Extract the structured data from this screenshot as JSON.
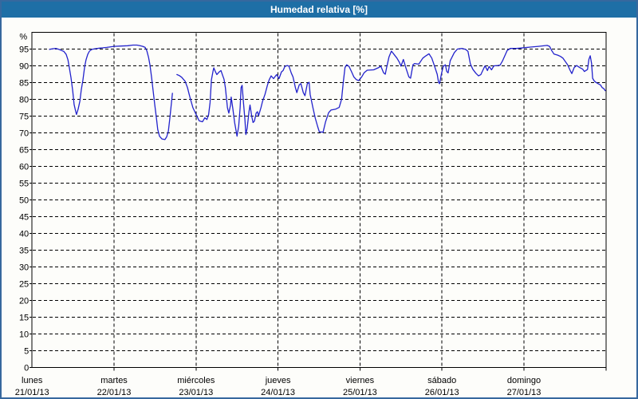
{
  "window": {
    "title": "Humedad relativa [%]",
    "title_bar_color": "#1e6fa6",
    "border_color": "#36689e",
    "background_color": "#fdfdfa"
  },
  "chart_data": {
    "type": "line",
    "title": "Humedad relativa [%]",
    "y_unit_label": "%",
    "ylim": [
      0,
      100
    ],
    "y_tick_step": 5,
    "y_ticks": [
      0,
      5,
      10,
      15,
      20,
      25,
      30,
      35,
      40,
      45,
      50,
      55,
      60,
      65,
      70,
      75,
      80,
      85,
      90,
      95
    ],
    "grid": "dashed",
    "legend": "none",
    "line_color": "#2222cc",
    "grid_color": "#000000",
    "x_axis": {
      "total_hours": 168,
      "day_width_hours": 24,
      "days": [
        {
          "name": "lunes",
          "date": "21/01/13"
        },
        {
          "name": "martes",
          "date": "22/01/13"
        },
        {
          "name": "miércoles",
          "date": "23/01/13"
        },
        {
          "name": "jueves",
          "date": "24/01/13"
        },
        {
          "name": "viernes",
          "date": "25/01/13"
        },
        {
          "name": "sábado",
          "date": "26/01/13"
        },
        {
          "name": "domingo",
          "date": "27/01/13"
        }
      ]
    },
    "series": [
      {
        "name": "Humedad relativa",
        "unit": "%",
        "points_format": "[hours_since_monday_00h, percent]",
        "segments": [
          [
            [
              5.1,
              94.9
            ],
            [
              6.0,
              95.1
            ],
            [
              7.0,
              95.2
            ],
            [
              7.9,
              94.9
            ],
            [
              8.6,
              94.6
            ],
            [
              9.3,
              94.3
            ],
            [
              10.0,
              93.4
            ],
            [
              10.5,
              91.8
            ],
            [
              10.9,
              89.5
            ],
            [
              11.4,
              86.5
            ],
            [
              11.9,
              82.5
            ],
            [
              12.3,
              78.5
            ],
            [
              12.8,
              76.3
            ],
            [
              13.0,
              75.5
            ],
            [
              13.5,
              77.1
            ],
            [
              14.0,
              79.5
            ],
            [
              14.4,
              82.8
            ],
            [
              14.9,
              85.8
            ],
            [
              15.4,
              89.8
            ],
            [
              15.8,
              91.8
            ],
            [
              16.3,
              93.4
            ],
            [
              16.8,
              94.4
            ],
            [
              17.5,
              94.9
            ],
            [
              18.4,
              95.1
            ],
            [
              20.0,
              95.3
            ],
            [
              21.9,
              95.5
            ],
            [
              24.0,
              95.8
            ],
            [
              26.0,
              95.9
            ],
            [
              28.0,
              96.0
            ],
            [
              29.5,
              96.2
            ],
            [
              30.7,
              96.2
            ],
            [
              31.6,
              96.0
            ],
            [
              32.4,
              95.8
            ],
            [
              33.1,
              95.5
            ],
            [
              33.6,
              94.5
            ],
            [
              34.1,
              92.5
            ],
            [
              34.5,
              90.3
            ],
            [
              35.0,
              86.5
            ],
            [
              35.4,
              83.0
            ],
            [
              35.9,
              78.5
            ],
            [
              36.4,
              74.5
            ],
            [
              36.8,
              71.0
            ],
            [
              37.3,
              69.0
            ],
            [
              38.0,
              68.2
            ],
            [
              38.9,
              68.0
            ],
            [
              39.4,
              68.8
            ],
            [
              39.9,
              70.5
            ],
            [
              40.3,
              74.0
            ],
            [
              40.8,
              79.0
            ],
            [
              41.1,
              81.8
            ]
          ],
          [
            [
              42.4,
              87.4
            ],
            [
              43.1,
              87.1
            ],
            [
              43.8,
              86.6
            ],
            [
              44.8,
              85.4
            ],
            [
              45.5,
              83.5
            ],
            [
              46.0,
              81.5
            ],
            [
              46.4,
              80.0
            ],
            [
              47.1,
              77.5
            ],
            [
              48.2,
              75.1
            ],
            [
              48.9,
              73.6
            ],
            [
              49.9,
              73.3
            ],
            [
              50.6,
              74.5
            ],
            [
              51.2,
              74.0
            ],
            [
              51.7,
              75.5
            ],
            [
              52.1,
              79.0
            ],
            [
              52.5,
              85.8
            ],
            [
              53.0,
              88.5
            ],
            [
              53.2,
              89.4
            ],
            [
              53.7,
              88.2
            ],
            [
              54.1,
              87.4
            ],
            [
              54.8,
              88.2
            ],
            [
              55.3,
              88.6
            ],
            [
              55.7,
              87.4
            ],
            [
              56.2,
              86.0
            ],
            [
              56.6,
              83.5
            ],
            [
              57.2,
              77.5
            ],
            [
              57.6,
              75.9
            ],
            [
              58.1,
              78.3
            ],
            [
              58.3,
              80.7
            ],
            [
              58.8,
              77.0
            ],
            [
              59.3,
              73.1
            ],
            [
              59.7,
              70.8
            ],
            [
              60.0,
              69.0
            ],
            [
              60.5,
              72.0
            ],
            [
              60.9,
              77.5
            ],
            [
              61.2,
              83.5
            ],
            [
              61.5,
              84.2
            ],
            [
              61.9,
              79.0
            ],
            [
              62.3,
              74.0
            ],
            [
              62.6,
              69.5
            ],
            [
              63.0,
              71.5
            ],
            [
              63.5,
              76.3
            ],
            [
              63.8,
              78.3
            ],
            [
              64.3,
              75.0
            ],
            [
              64.7,
              73.1
            ],
            [
              65.1,
              73.5
            ],
            [
              65.6,
              75.9
            ],
            [
              66.0,
              76.3
            ],
            [
              66.3,
              75.1
            ],
            [
              67.0,
              77.5
            ],
            [
              67.5,
              79.5
            ],
            [
              68.2,
              81.5
            ],
            [
              68.9,
              84.2
            ],
            [
              69.4,
              85.8
            ],
            [
              70.0,
              87.0
            ],
            [
              70.7,
              86.2
            ],
            [
              71.6,
              87.4
            ],
            [
              72.3,
              86.2
            ],
            [
              73.0,
              88.2
            ],
            [
              73.5,
              88.6
            ],
            [
              74.0,
              89.8
            ],
            [
              74.7,
              90.1
            ],
            [
              75.2,
              89.9
            ],
            [
              75.9,
              87.8
            ],
            [
              76.4,
              86.7
            ],
            [
              77.1,
              83.5
            ],
            [
              77.5,
              82.0
            ],
            [
              78.2,
              84.3
            ],
            [
              78.7,
              84.7
            ],
            [
              79.4,
              82.0
            ],
            [
              79.9,
              81.1
            ],
            [
              80.6,
              84.7
            ],
            [
              81.1,
              85.1
            ],
            [
              81.4,
              81.5
            ],
            [
              82.2,
              77.6
            ],
            [
              82.9,
              74.4
            ],
            [
              83.6,
              71.9
            ],
            [
              84.1,
              70.3
            ],
            [
              85.2,
              70.2
            ],
            [
              85.9,
              73.2
            ],
            [
              86.8,
              76.0
            ],
            [
              87.5,
              76.8
            ],
            [
              88.9,
              77.1
            ],
            [
              89.9,
              77.6
            ],
            [
              90.6,
              80.0
            ],
            [
              91.1,
              85.0
            ],
            [
              91.6,
              89.5
            ],
            [
              92.1,
              90.3
            ],
            [
              92.8,
              89.8
            ],
            [
              93.5,
              88.3
            ],
            [
              94.2,
              86.7
            ],
            [
              94.9,
              85.9
            ],
            [
              95.6,
              85.6
            ],
            [
              96.5,
              86.7
            ],
            [
              97.2,
              87.9
            ],
            [
              98.1,
              88.7
            ],
            [
              100.0,
              88.8
            ],
            [
              101.5,
              89.5
            ],
            [
              102.1,
              89.9
            ],
            [
              102.9,
              87.9
            ],
            [
              103.4,
              87.5
            ],
            [
              103.8,
              89.5
            ],
            [
              104.5,
              92.7
            ],
            [
              105.2,
              94.4
            ],
            [
              105.9,
              93.5
            ],
            [
              106.8,
              92.3
            ],
            [
              107.5,
              91.1
            ],
            [
              108.0,
              89.9
            ],
            [
              108.7,
              91.9
            ],
            [
              109.4,
              89.5
            ],
            [
              110.3,
              86.7
            ],
            [
              110.8,
              86.3
            ],
            [
              111.5,
              90.3
            ],
            [
              112.0,
              90.7
            ],
            [
              113.2,
              90.5
            ],
            [
              114.4,
              92.3
            ],
            [
              115.3,
              93.0
            ],
            [
              116.2,
              93.6
            ],
            [
              117.0,
              92.3
            ],
            [
              117.7,
              90.3
            ],
            [
              118.6,
              87.5
            ],
            [
              119.0,
              85.1
            ],
            [
              119.3,
              84.7
            ],
            [
              119.9,
              87.9
            ],
            [
              120.4,
              89.9
            ],
            [
              121.0,
              90.3
            ],
            [
              121.4,
              88.3
            ],
            [
              121.8,
              87.9
            ],
            [
              122.4,
              91.5
            ],
            [
              123.6,
              93.9
            ],
            [
              124.5,
              95.0
            ],
            [
              125.9,
              95.2
            ],
            [
              126.9,
              94.9
            ],
            [
              127.6,
              94.3
            ],
            [
              128.0,
              92.2
            ],
            [
              128.3,
              90.6
            ],
            [
              129.0,
              89.0
            ],
            [
              129.9,
              87.8
            ],
            [
              130.7,
              87.0
            ],
            [
              131.4,
              87.4
            ],
            [
              132.3,
              89.4
            ],
            [
              132.6,
              90.0
            ],
            [
              133.3,
              88.6
            ],
            [
              133.8,
              89.8
            ],
            [
              134.5,
              88.8
            ],
            [
              135.2,
              90.0
            ],
            [
              136.3,
              90.1
            ],
            [
              137.0,
              90.2
            ],
            [
              137.7,
              91.4
            ],
            [
              138.4,
              93.0
            ],
            [
              139.1,
              94.6
            ],
            [
              140.0,
              95.2
            ],
            [
              141.9,
              95.2
            ],
            [
              144.0,
              95.4
            ],
            [
              145.9,
              95.6
            ],
            [
              148.2,
              95.8
            ],
            [
              150.8,
              96.1
            ],
            [
              151.5,
              95.8
            ],
            [
              152.1,
              94.6
            ],
            [
              152.8,
              93.5
            ],
            [
              153.9,
              93.2
            ],
            [
              154.7,
              92.8
            ],
            [
              155.4,
              92.3
            ],
            [
              156.1,
              91.3
            ],
            [
              156.8,
              90.3
            ],
            [
              157.5,
              88.7
            ],
            [
              158.0,
              87.7
            ],
            [
              158.7,
              89.5
            ],
            [
              159.4,
              90.1
            ],
            [
              160.3,
              89.5
            ],
            [
              161.2,
              89.0
            ],
            [
              161.7,
              88.3
            ],
            [
              162.6,
              88.9
            ],
            [
              163.0,
              91.9
            ],
            [
              163.4,
              93.0
            ],
            [
              163.8,
              90.7
            ],
            [
              164.1,
              86.3
            ],
            [
              164.5,
              85.6
            ],
            [
              165.0,
              85.1
            ],
            [
              165.7,
              84.7
            ],
            [
              166.4,
              84.3
            ],
            [
              166.9,
              83.5
            ],
            [
              167.4,
              83.2
            ],
            [
              167.8,
              82.6
            ]
          ]
        ]
      }
    ]
  }
}
